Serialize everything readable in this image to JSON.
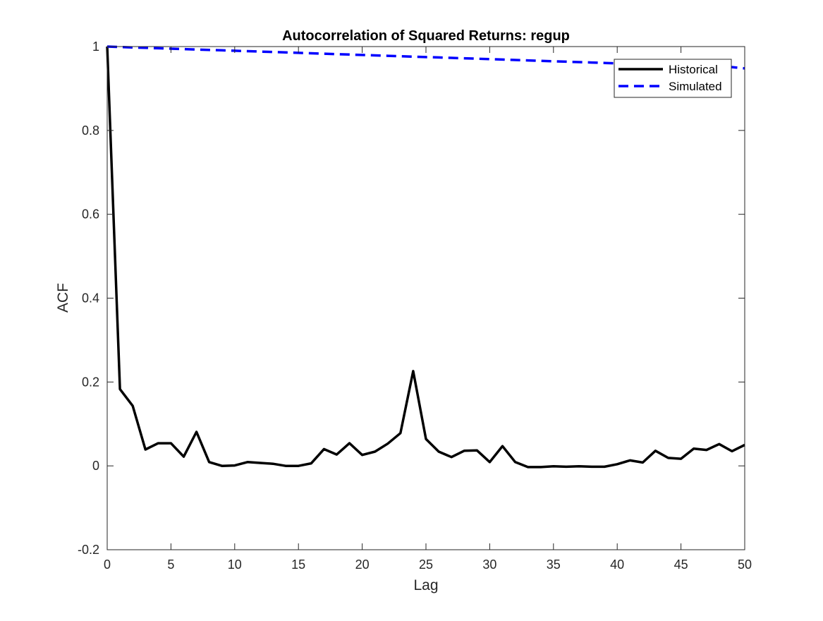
{
  "chart_data": {
    "type": "line",
    "title": "Autocorrelation of Squared Returns: regup",
    "xlabel": "Lag",
    "ylabel": "ACF",
    "xlim": [
      0,
      50
    ],
    "ylim": [
      -0.2,
      1
    ],
    "xticks": [
      0,
      5,
      10,
      15,
      20,
      25,
      30,
      35,
      40,
      45,
      50
    ],
    "yticks": [
      -0.2,
      0,
      0.2,
      0.4,
      0.6,
      0.8,
      1
    ],
    "xtick_labels": [
      "0",
      "5",
      "10",
      "15",
      "20",
      "25",
      "30",
      "35",
      "40",
      "45",
      "50"
    ],
    "ytick_labels": [
      "-0.2",
      "0",
      "0.2",
      "0.4",
      "0.6",
      "0.8",
      "1"
    ],
    "grid": false,
    "box": true,
    "legend_position": "top-right",
    "x": [
      0,
      1,
      2,
      3,
      4,
      5,
      6,
      7,
      8,
      9,
      10,
      11,
      12,
      13,
      14,
      15,
      16,
      17,
      18,
      19,
      20,
      21,
      22,
      23,
      24,
      25,
      26,
      27,
      28,
      29,
      30,
      31,
      32,
      33,
      34,
      35,
      36,
      37,
      38,
      39,
      40,
      41,
      42,
      43,
      44,
      45,
      46,
      47,
      48,
      49,
      50
    ],
    "series": [
      {
        "name": "Historical",
        "color": "#000000",
        "style": "solid",
        "values": [
          1.0,
          0.183,
          0.143,
          0.039,
          0.054,
          0.054,
          0.022,
          0.081,
          0.009,
          0.0,
          0.001,
          0.009,
          0.007,
          0.005,
          0.0,
          0.0,
          0.006,
          0.04,
          0.027,
          0.054,
          0.026,
          0.034,
          0.053,
          0.078,
          0.226,
          0.064,
          0.034,
          0.021,
          0.036,
          0.037,
          0.009,
          0.047,
          0.009,
          -0.003,
          -0.003,
          -0.001,
          -0.002,
          -0.001,
          -0.002,
          -0.002,
          0.004,
          0.013,
          0.008,
          0.036,
          0.019,
          0.017,
          0.041,
          0.038,
          0.052,
          0.035,
          0.05
        ]
      },
      {
        "name": "Simulated",
        "color": "#0000ff",
        "style": "dashed",
        "values": [
          1.0,
          0.999,
          0.998,
          0.997,
          0.996,
          0.995,
          0.994,
          0.993,
          0.992,
          0.991,
          0.99,
          0.989,
          0.988,
          0.987,
          0.986,
          0.985,
          0.984,
          0.983,
          0.982,
          0.981,
          0.98,
          0.979,
          0.978,
          0.977,
          0.976,
          0.975,
          0.974,
          0.973,
          0.972,
          0.971,
          0.97,
          0.969,
          0.968,
          0.967,
          0.966,
          0.965,
          0.964,
          0.963,
          0.962,
          0.961,
          0.96,
          0.959,
          0.958,
          0.957,
          0.956,
          0.955,
          0.954,
          0.953,
          0.952,
          0.951,
          0.948
        ]
      }
    ]
  }
}
